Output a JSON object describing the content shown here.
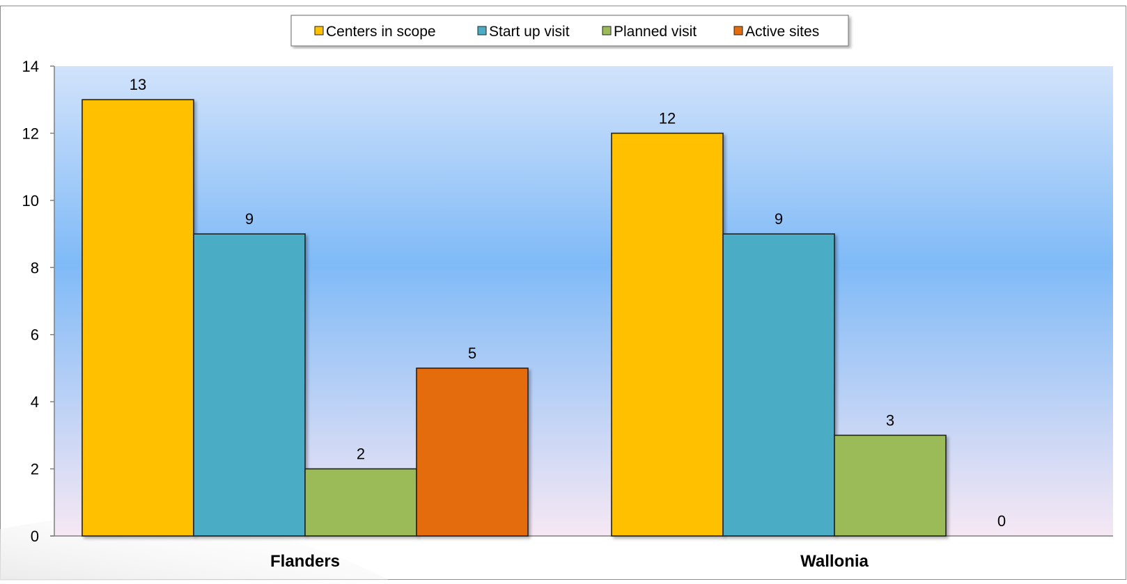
{
  "chart_data": {
    "type": "bar",
    "categories": [
      "Flanders",
      "Wallonia"
    ],
    "series": [
      {
        "name": "Centers in scope",
        "values": [
          13,
          12
        ]
      },
      {
        "name": "Start up visit",
        "values": [
          9,
          9
        ]
      },
      {
        "name": "Planned visit",
        "values": [
          2,
          3
        ]
      },
      {
        "name": "Active sites",
        "values": [
          5,
          0
        ]
      }
    ],
    "yticks": [
      "0",
      "2",
      "4",
      "6",
      "8",
      "10",
      "12",
      "14"
    ],
    "ylim": [
      0,
      14
    ],
    "legend_position": "top-center",
    "grid": false,
    "colors": {
      "series": [
        "#FFC000",
        "#4BACC6",
        "#9BBB59",
        "#E46C0A"
      ],
      "bar_outline": "#222222",
      "plot_gradient": [
        "#D2E3FB",
        "#7FBAF7",
        "#F6E8F4"
      ]
    }
  }
}
